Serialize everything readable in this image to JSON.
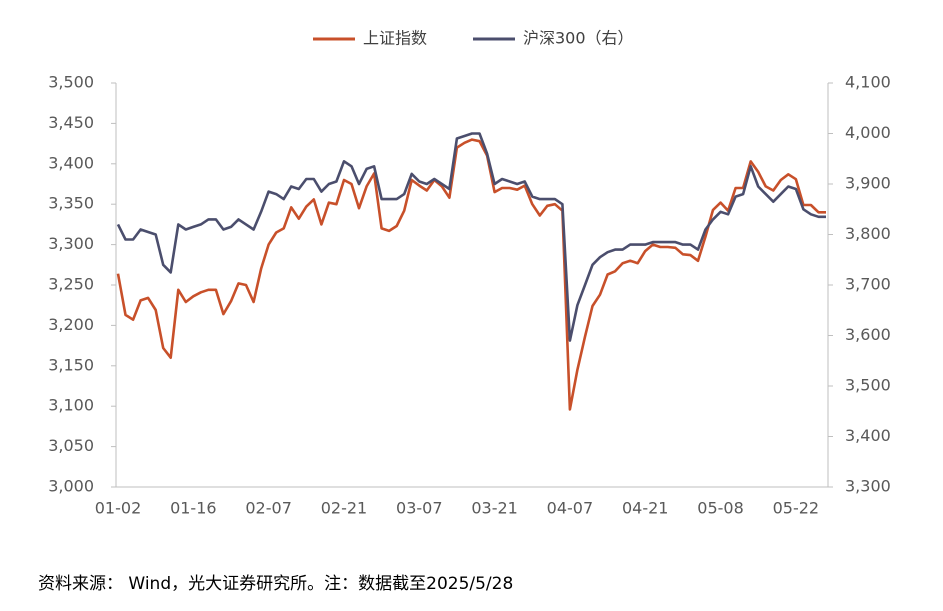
{
  "chart_data": {
    "type": "line",
    "categories": [
      "01-02",
      null,
      null,
      null,
      null,
      null,
      null,
      null,
      null,
      null,
      "01-16",
      null,
      null,
      null,
      null,
      null,
      null,
      null,
      null,
      null,
      "02-07",
      null,
      null,
      null,
      null,
      null,
      null,
      null,
      null,
      null,
      "02-21",
      null,
      null,
      null,
      null,
      null,
      null,
      null,
      null,
      null,
      "03-07",
      null,
      null,
      null,
      null,
      null,
      null,
      null,
      null,
      null,
      "03-21",
      null,
      null,
      null,
      null,
      null,
      null,
      null,
      null,
      null,
      "04-07",
      null,
      null,
      null,
      null,
      null,
      null,
      null,
      null,
      null,
      "04-21",
      null,
      null,
      null,
      null,
      null,
      null,
      null,
      null,
      null,
      "05-08",
      null,
      null,
      null,
      null,
      null,
      null,
      null,
      null,
      null,
      "05-22",
      null,
      null,
      null,
      null
    ],
    "series": [
      {
        "name": "上证指数",
        "color": "#C8502A",
        "values": [
          3264,
          3213,
          3207,
          3231,
          3234,
          3219,
          3172,
          3160,
          3244,
          3229,
          3236,
          3241,
          3244,
          3244,
          3214,
          3230,
          3252,
          3250,
          3229,
          3270,
          3300,
          3315,
          3320,
          3346,
          3332,
          3347,
          3356,
          3325,
          3352,
          3350,
          3380,
          3375,
          3345,
          3372,
          3388,
          3320,
          3317,
          3323,
          3342,
          3380,
          3373,
          3367,
          3380,
          3372,
          3358,
          3420,
          3426,
          3430,
          3428,
          3410,
          3365,
          3370,
          3370,
          3368,
          3373,
          3350,
          3336,
          3348,
          3350,
          3342,
          3096,
          3145,
          3186,
          3224,
          3238,
          3263,
          3267,
          3277,
          3280,
          3277,
          3292,
          3300,
          3297,
          3297,
          3296,
          3288,
          3287,
          3280,
          3310,
          3343,
          3352,
          3342,
          3370,
          3370,
          3403,
          3390,
          3372,
          3367,
          3380,
          3387,
          3381,
          3349,
          3349,
          3340,
          3340
        ]
      },
      {
        "name": "沪深300（右）",
        "color": "#4B4E6D",
        "axis": "y2",
        "values": [
          3820,
          3790,
          3790,
          3810,
          3805,
          3800,
          3740,
          3725,
          3820,
          3810,
          3815,
          3820,
          3830,
          3830,
          3810,
          3815,
          3830,
          3820,
          3810,
          3845,
          3885,
          3880,
          3870,
          3895,
          3890,
          3910,
          3910,
          3885,
          3900,
          3905,
          3945,
          3935,
          3900,
          3930,
          3935,
          3870,
          3870,
          3870,
          3880,
          3920,
          3905,
          3900,
          3910,
          3900,
          3890,
          3990,
          3995,
          4000,
          4000,
          3960,
          3900,
          3910,
          3905,
          3900,
          3905,
          3875,
          3870,
          3870,
          3870,
          3860,
          3590,
          3660,
          3700,
          3740,
          3755,
          3765,
          3770,
          3770,
          3780,
          3780,
          3780,
          3785,
          3785,
          3785,
          3785,
          3780,
          3780,
          3770,
          3810,
          3830,
          3845,
          3840,
          3875,
          3880,
          3935,
          3895,
          3880,
          3865,
          3880,
          3895,
          3890,
          3850,
          3840,
          3835,
          3835
        ]
      }
    ],
    "ylim": [
      3000,
      3500
    ],
    "yticks": [
      {
        "value": 3000,
        "label": "3,000"
      },
      {
        "value": 3050,
        "label": "3,050"
      },
      {
        "value": 3100,
        "label": "3,100"
      },
      {
        "value": 3150,
        "label": "3,150"
      },
      {
        "value": 3200,
        "label": "3,200"
      },
      {
        "value": 3250,
        "label": "3,250"
      },
      {
        "value": 3300,
        "label": "3,300"
      },
      {
        "value": 3350,
        "label": "3,350"
      },
      {
        "value": 3400,
        "label": "3,400"
      },
      {
        "value": 3450,
        "label": "3,450"
      },
      {
        "value": 3500,
        "label": "3,500"
      }
    ],
    "y2lim": [
      3300,
      4100
    ],
    "y2ticks": [
      {
        "value": 3300,
        "label": "3,300"
      },
      {
        "value": 3400,
        "label": "3,400"
      },
      {
        "value": 3500,
        "label": "3,500"
      },
      {
        "value": 3600,
        "label": "3,600"
      },
      {
        "value": 3700,
        "label": "3,700"
      },
      {
        "value": 3800,
        "label": "3,800"
      },
      {
        "value": 3900,
        "label": "3,900"
      },
      {
        "value": 4000,
        "label": "4,000"
      },
      {
        "value": 4100,
        "label": "4,100"
      }
    ],
    "legend": "top",
    "source": "资料来源： Wind，光大证券研究所。注：数据截至2025/5/28"
  }
}
